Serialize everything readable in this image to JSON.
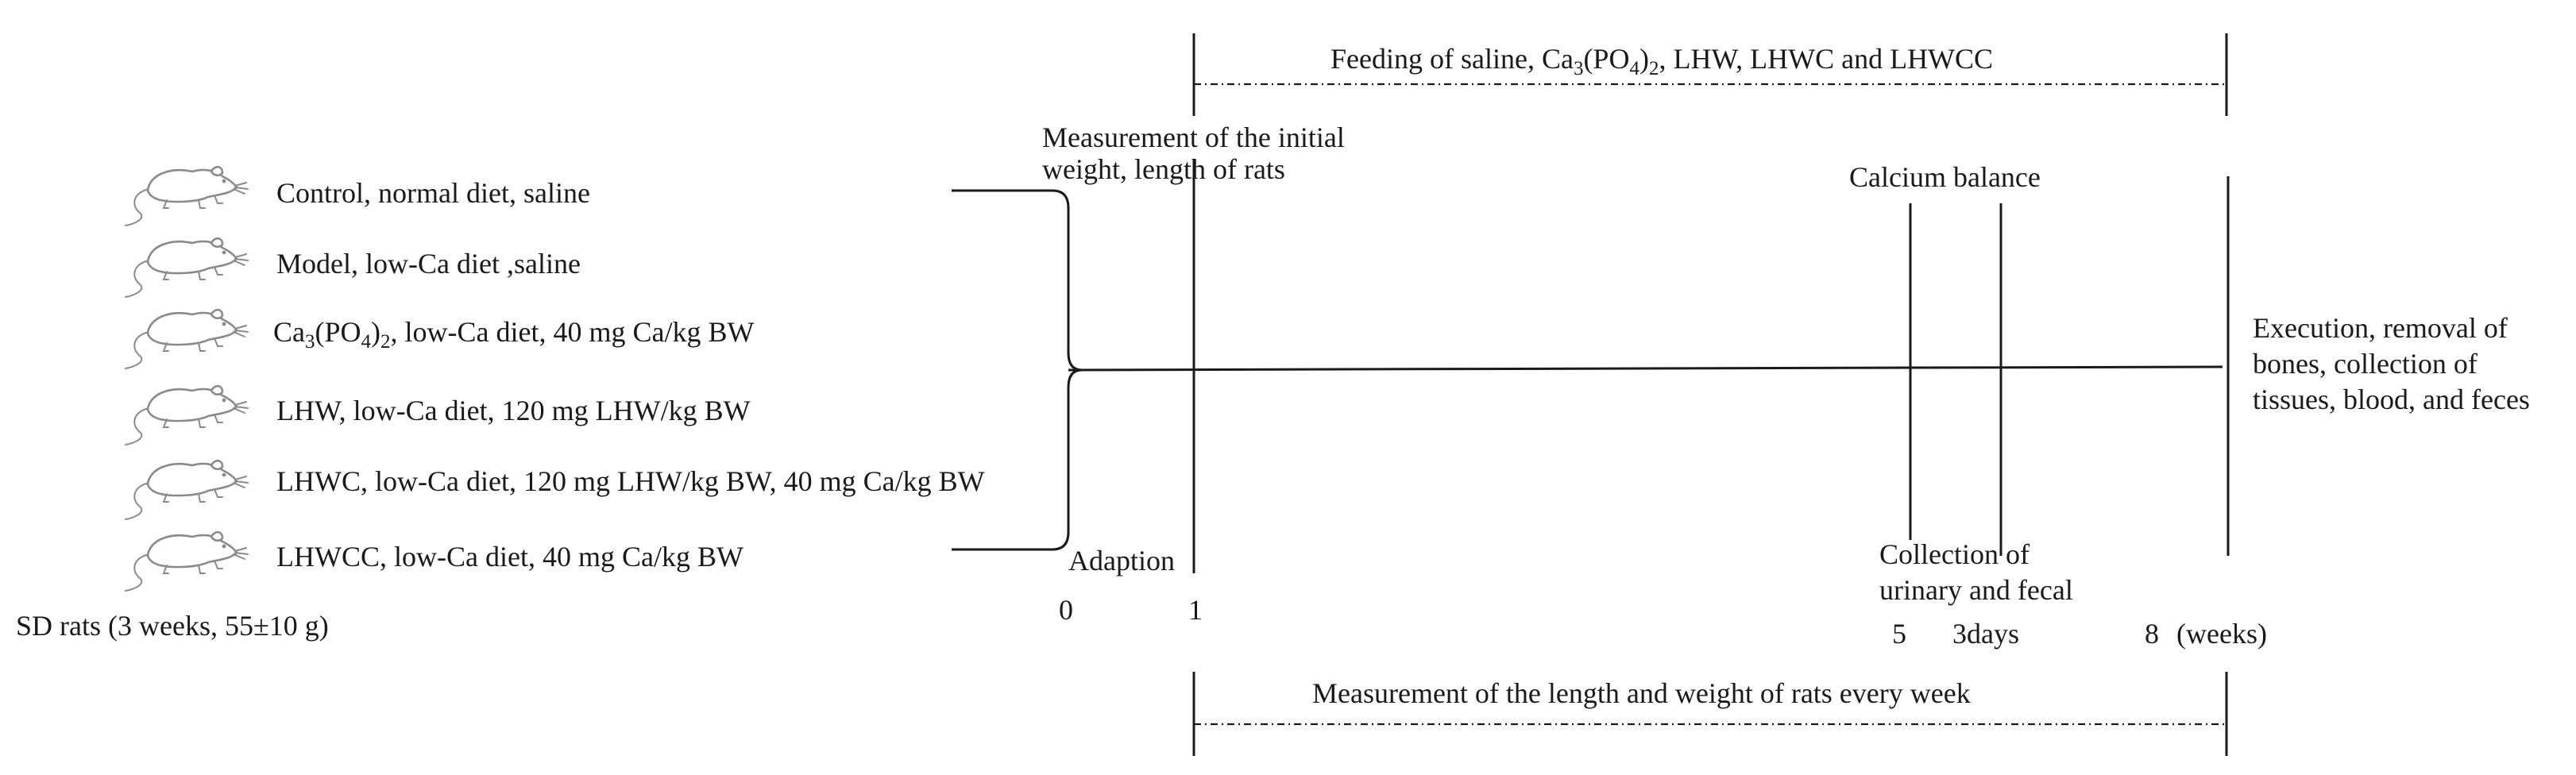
{
  "groups": {
    "control": {
      "text": "Control, normal diet, saline"
    },
    "model": {
      "text": "Model, low-Ca diet ,saline"
    },
    "ca3po4": {
      "prefix": "Ca",
      "sub1": "3",
      "mid": "(PO",
      "sub2": "4",
      "close": ")",
      "sub3": "2",
      "rest": ", low-Ca diet, 40 mg Ca/kg BW"
    },
    "lhw": {
      "text": "LHW, low-Ca diet, 120 mg LHW/kg BW"
    },
    "lhwc": {
      "text": "LHWC, low-Ca diet, 120 mg LHW/kg BW, 40 mg Ca/kg BW"
    },
    "lhwcc": {
      "text": "LHWCC, low-Ca diet, 40 mg Ca/kg BW"
    }
  },
  "sd_rats": "SD rats (3 weeks, 55±10 g)",
  "feeding": {
    "prefix": "Feeding of saline, Ca",
    "sub1": "3",
    "mid": "(PO",
    "sub2": "4",
    "close": ")",
    "sub3": "2",
    "rest": ", LHW, LHWC and LHWCC"
  },
  "initial_measurement": {
    "line1": "Measurement of the initial",
    "line2": "weight, length of rats"
  },
  "calcium_balance": "Calcium balance",
  "execution": {
    "line1": "Execution, removal of",
    "line2": "bones, collection of",
    "line3": "tissues, blood, and feces"
  },
  "adaption": "Adaption",
  "collection": {
    "line1": "Collection of",
    "line2": "urinary and fecal"
  },
  "ticks": {
    "t0": "0",
    "t1": "1",
    "t5": "5",
    "t3days": "3days",
    "t8": "8",
    "weeks": "(weeks)"
  },
  "weekly_measurement": "Measurement of the length and weight of rats every week",
  "icons": {
    "rat": "rat-icon"
  }
}
